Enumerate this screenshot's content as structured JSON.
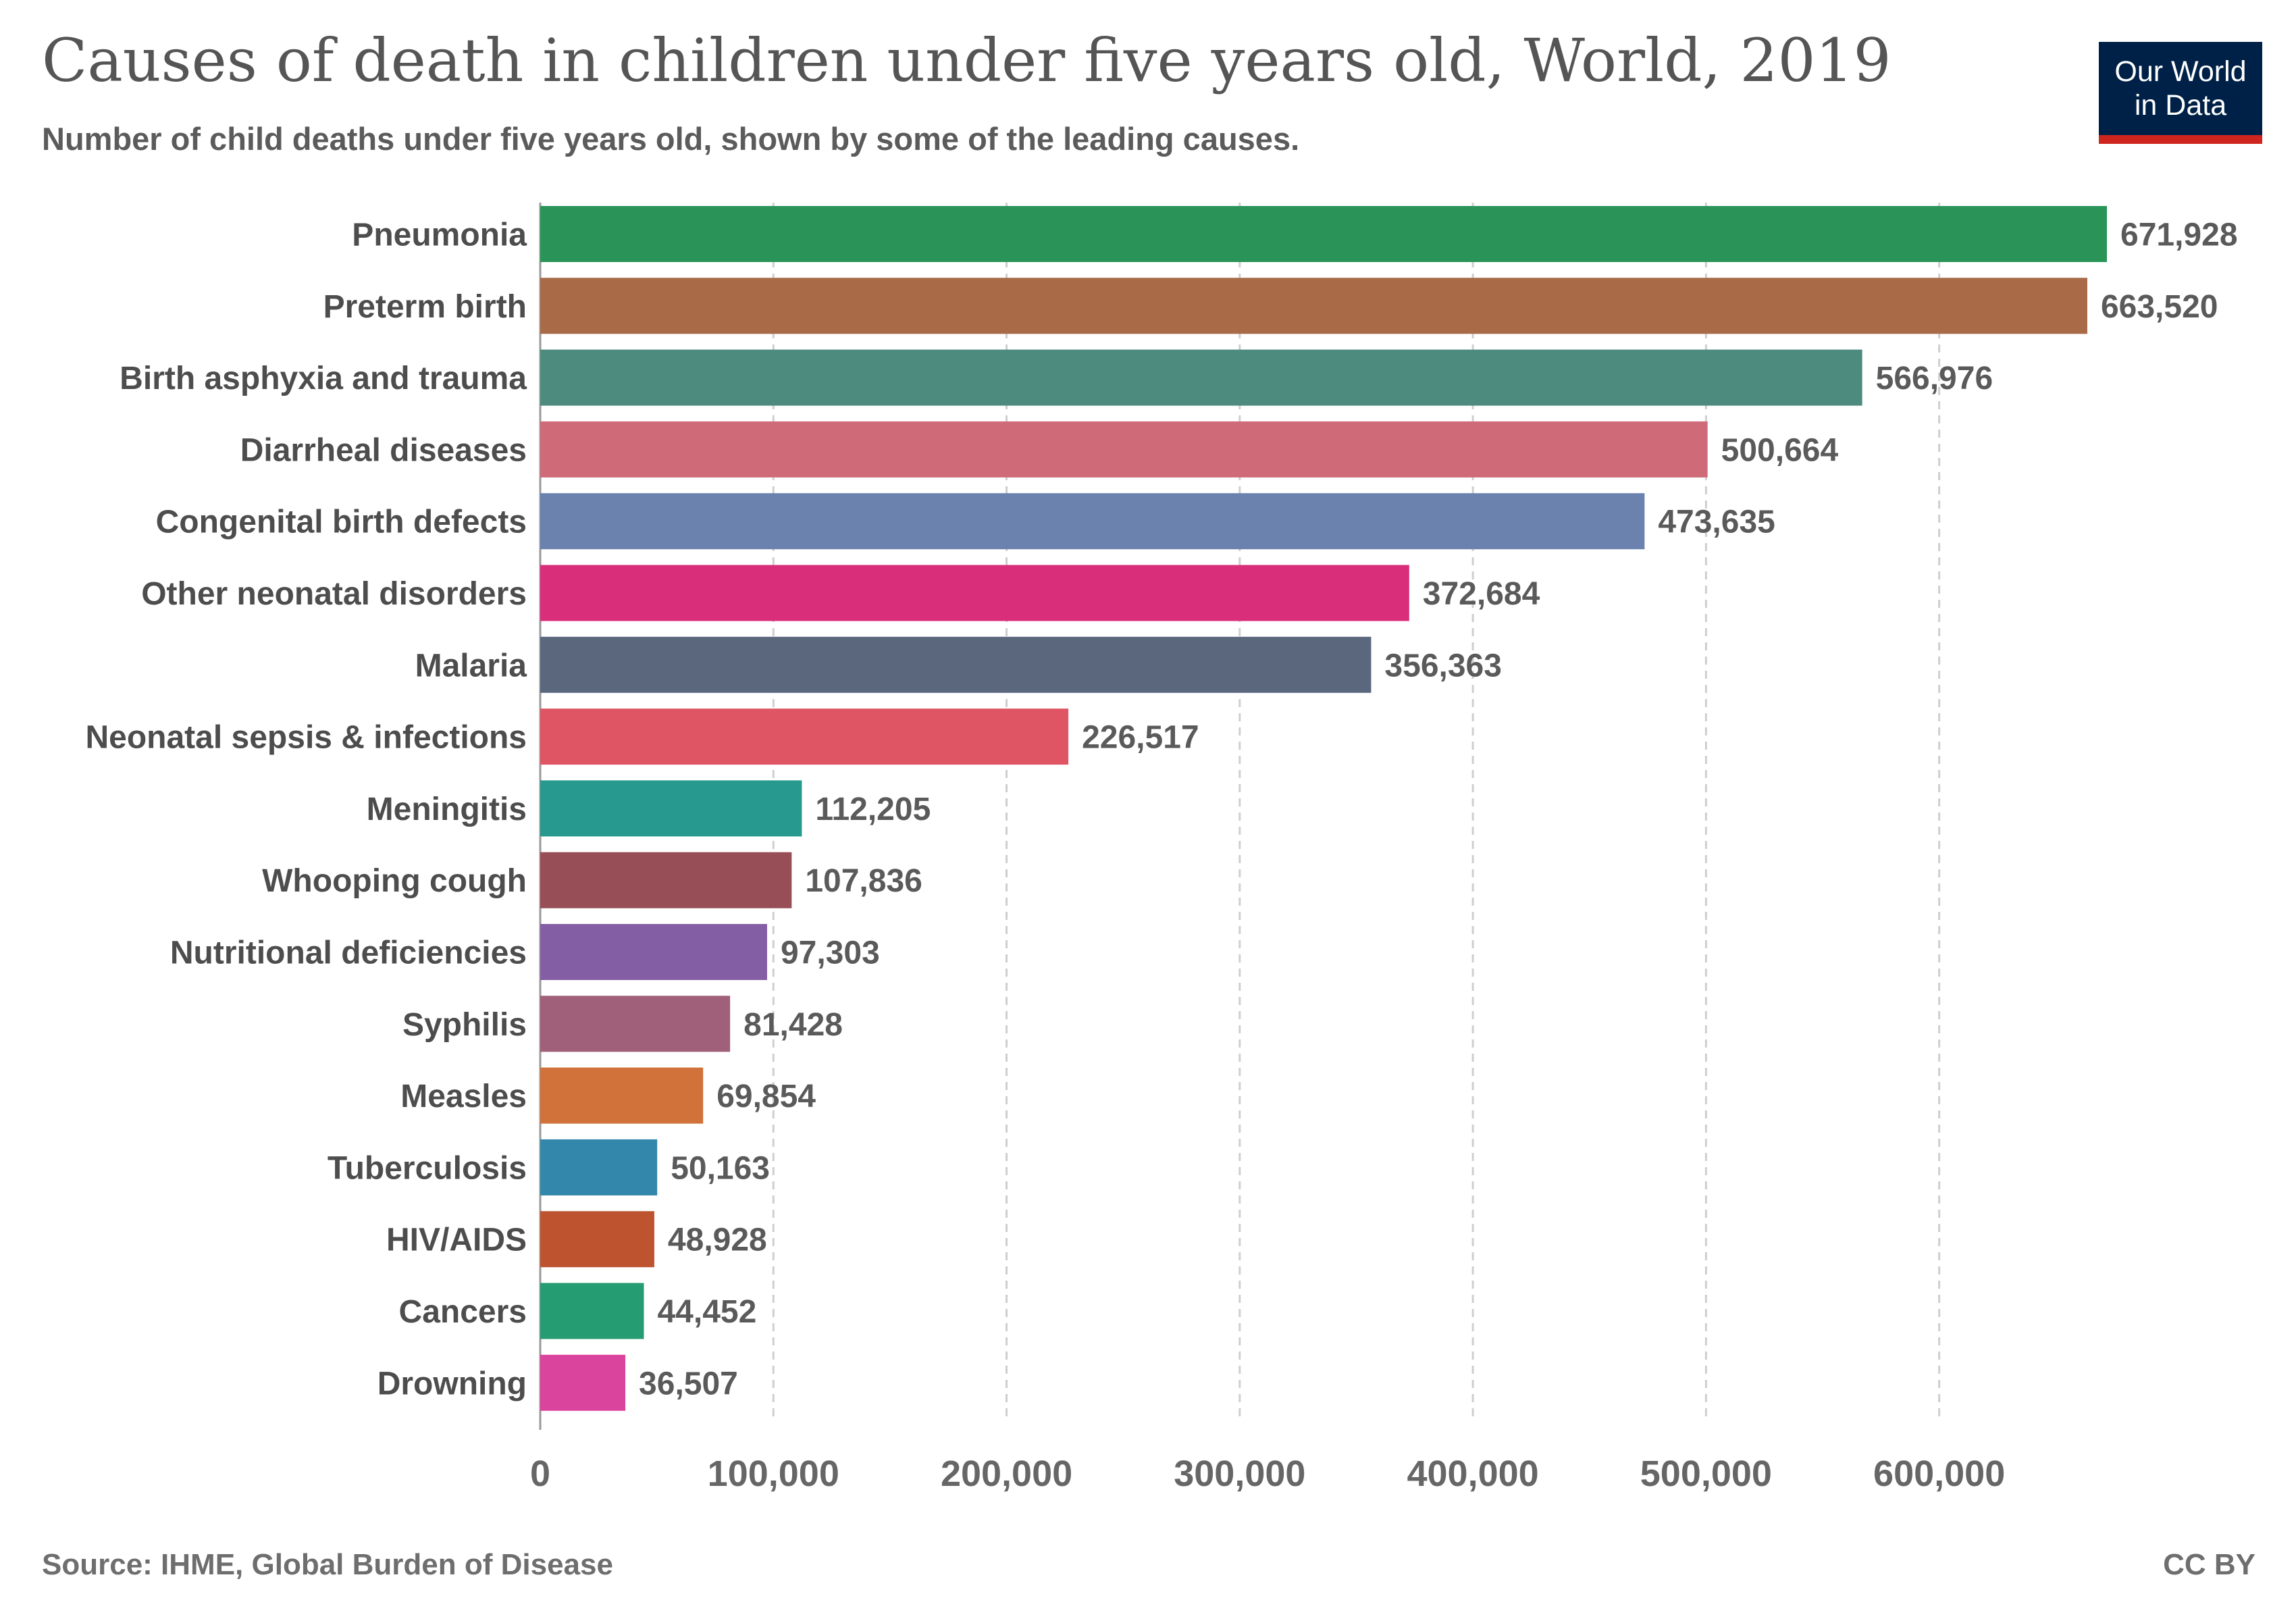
{
  "header": {
    "title": "Causes of death in children under five years old, World, 2019",
    "subtitle": "Number of child deaths under five years old, shown by some of the leading causes."
  },
  "logo": {
    "line1": "Our World",
    "line2": "in Data"
  },
  "footer": {
    "source": "Source: IHME, Global Burden of Disease",
    "license": "CC BY"
  },
  "chart_data": {
    "type": "bar",
    "orientation": "horizontal",
    "title": "Causes of death in children under five years old, World, 2019",
    "subtitle": "Number of child deaths under five years old, shown by some of the leading causes.",
    "categories": [
      "Pneumonia",
      "Preterm birth",
      "Birth asphyxia and trauma",
      "Diarrheal diseases",
      "Congenital birth defects",
      "Other neonatal disorders",
      "Malaria",
      "Neonatal sepsis & infections",
      "Meningitis",
      "Whooping cough",
      "Nutritional deficiencies",
      "Syphilis",
      "Measles",
      "Tuberculosis",
      "HIV/AIDS",
      "Cancers",
      "Drowning"
    ],
    "values": [
      671928,
      663520,
      566976,
      500664,
      473635,
      372684,
      356363,
      226517,
      112205,
      107836,
      97303,
      81428,
      69854,
      50163,
      48928,
      44452,
      36507
    ],
    "value_labels": [
      "671,928",
      "663,520",
      "566,976",
      "500,664",
      "473,635",
      "372,684",
      "356,363",
      "226,517",
      "112,205",
      "107,836",
      "97,303",
      "81,428",
      "69,854",
      "50,163",
      "48,928",
      "44,452",
      "36,507"
    ],
    "colors": [
      "#2a9458",
      "#a86a47",
      "#4c8b7e",
      "#cf6a79",
      "#6a82ad",
      "#d92e7a",
      "#5b677d",
      "#df5564",
      "#27998e",
      "#984e56",
      "#845ea4",
      "#a06079",
      "#d07239",
      "#3287ab",
      "#bd532f",
      "#259c71",
      "#db449c"
    ],
    "xlim": [
      0,
      671928
    ],
    "x_ticks": [
      0,
      100000,
      200000,
      300000,
      400000,
      500000,
      600000
    ],
    "x_tick_labels": [
      "0",
      "100,000",
      "200,000",
      "300,000",
      "400,000",
      "500,000",
      "600,000"
    ],
    "grid": "vertical dashed",
    "legend": "none"
  }
}
